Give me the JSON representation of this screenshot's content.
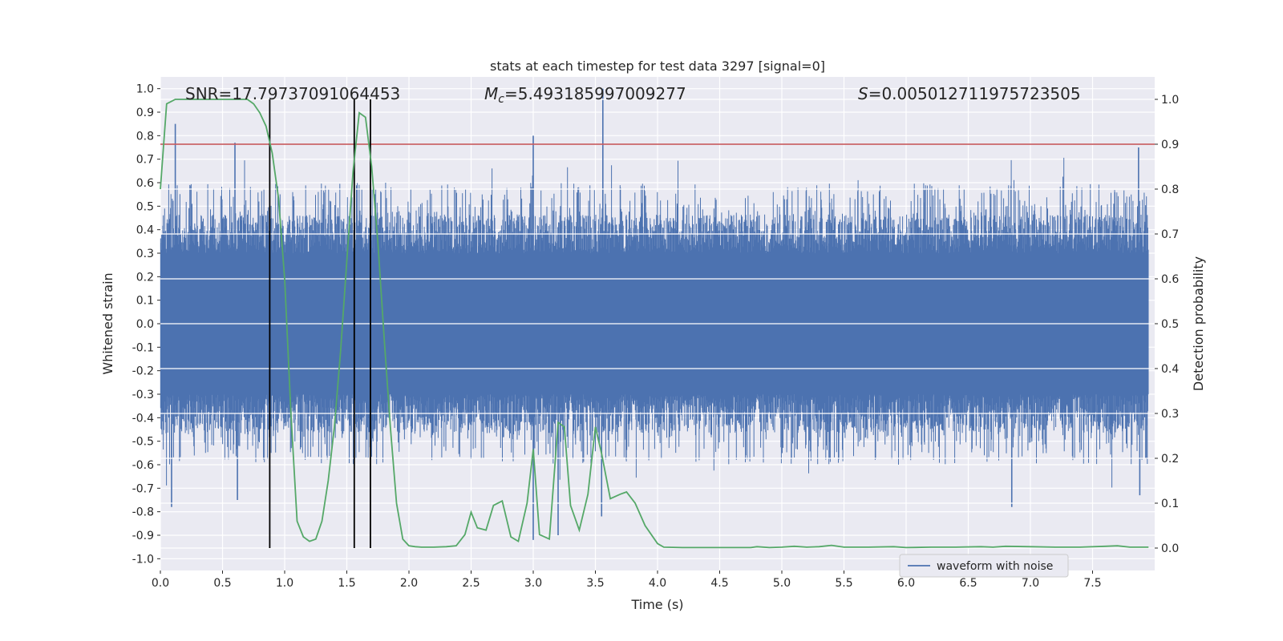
{
  "chart_data": {
    "type": "line",
    "title": "stats at each timestep for test data 3297 [signal=0]",
    "xlabel": "Time (s)",
    "ylabel_left": "Whitened strain",
    "ylabel_right": "Detection probability",
    "xlim": [
      0,
      8
    ],
    "ylim_left": [
      -1.05,
      1.05
    ],
    "ylim_right": [
      -0.05,
      1.05
    ],
    "x_ticks": [
      "0.0",
      "0.5",
      "1.0",
      "1.5",
      "2.0",
      "2.5",
      "3.0",
      "3.5",
      "4.0",
      "4.5",
      "5.0",
      "5.5",
      "6.0",
      "6.5",
      "7.0",
      "7.5"
    ],
    "y_ticks_left": [
      "-1.0",
      "-0.9",
      "-0.8",
      "-0.7",
      "-0.6",
      "-0.5",
      "-0.4",
      "-0.3",
      "-0.2",
      "-0.1",
      "0.0",
      "0.1",
      "0.2",
      "0.3",
      "0.4",
      "0.5",
      "0.6",
      "0.7",
      "0.8",
      "0.9",
      "1.0"
    ],
    "y_ticks_right": [
      "0.0",
      "0.1",
      "0.2",
      "0.3",
      "0.4",
      "0.5",
      "0.6",
      "0.7",
      "0.8",
      "0.9",
      "1.0"
    ],
    "annotations": {
      "snr": "SNR=17.79737091064453",
      "mc_symbol": "M",
      "mc_sub": "c",
      "mc_value": "=5.493185997009277",
      "s_symbol": "S",
      "s_value": "=0.005012711975723505"
    },
    "threshold_right": 0.9,
    "threshold_color": "#c44e52",
    "vertical_lines_x": [
      0.88,
      1.56,
      1.69
    ],
    "waveform": {
      "name": "waveform with noise",
      "color": "#4c72b0",
      "core_amplitude": 0.3,
      "typical_peak_range": [
        0.35,
        0.6
      ],
      "notable_peaks": [
        {
          "x": 0.12,
          "y": 0.85
        },
        {
          "x": 0.09,
          "y": -0.78
        },
        {
          "x": 0.6,
          "y": 0.77
        },
        {
          "x": 0.62,
          "y": -0.75
        },
        {
          "x": 3.0,
          "y": 0.8
        },
        {
          "x": 3.0,
          "y": -0.92
        },
        {
          "x": 3.56,
          "y": 1.0
        },
        {
          "x": 3.55,
          "y": -0.82
        },
        {
          "x": 3.2,
          "y": -0.9
        },
        {
          "x": 6.85,
          "y": -0.78
        },
        {
          "x": 7.87,
          "y": 0.75
        },
        {
          "x": 7.88,
          "y": -0.73
        }
      ]
    },
    "probability": {
      "color": "#55a868",
      "x": [
        0.0,
        0.05,
        0.12,
        0.2,
        0.3,
        0.4,
        0.5,
        0.6,
        0.7,
        0.75,
        0.8,
        0.85,
        0.9,
        0.95,
        1.0,
        1.05,
        1.1,
        1.15,
        1.2,
        1.25,
        1.3,
        1.35,
        1.4,
        1.45,
        1.5,
        1.55,
        1.6,
        1.65,
        1.7,
        1.75,
        1.8,
        1.85,
        1.9,
        1.95,
        2.0,
        2.05,
        2.1,
        2.2,
        2.3,
        2.38,
        2.45,
        2.5,
        2.55,
        2.62,
        2.68,
        2.75,
        2.82,
        2.88,
        2.95,
        3.0,
        3.05,
        3.13,
        3.2,
        3.25,
        3.3,
        3.37,
        3.44,
        3.5,
        3.55,
        3.62,
        3.7,
        3.75,
        3.82,
        3.9,
        4.0,
        4.05,
        4.2,
        4.5,
        4.75,
        4.8,
        4.9,
        5.0,
        5.1,
        5.2,
        5.3,
        5.4,
        5.5,
        5.7,
        5.9,
        6.0,
        6.2,
        6.4,
        6.6,
        6.7,
        6.8,
        7.0,
        7.2,
        7.4,
        7.6,
        7.7,
        7.8,
        7.95
      ],
      "y": [
        0.8,
        0.99,
        1.0,
        1.0,
        1.0,
        1.0,
        1.0,
        1.0,
        1.0,
        0.99,
        0.97,
        0.94,
        0.88,
        0.78,
        0.6,
        0.3,
        0.06,
        0.025,
        0.015,
        0.02,
        0.06,
        0.15,
        0.27,
        0.44,
        0.64,
        0.84,
        0.97,
        0.96,
        0.85,
        0.68,
        0.47,
        0.27,
        0.1,
        0.02,
        0.005,
        0.003,
        0.002,
        0.002,
        0.003,
        0.005,
        0.03,
        0.08,
        0.045,
        0.04,
        0.095,
        0.105,
        0.025,
        0.015,
        0.1,
        0.22,
        0.03,
        0.02,
        0.28,
        0.27,
        0.095,
        0.04,
        0.12,
        0.27,
        0.21,
        0.11,
        0.12,
        0.125,
        0.1,
        0.05,
        0.01,
        0.002,
        0.001,
        0.001,
        0.001,
        0.003,
        0.001,
        0.002,
        0.004,
        0.002,
        0.003,
        0.006,
        0.002,
        0.002,
        0.003,
        0.001,
        0.002,
        0.002,
        0.003,
        0.002,
        0.004,
        0.003,
        0.002,
        0.002,
        0.004,
        0.005,
        0.002,
        0.002
      ]
    },
    "legend": {
      "placement": "lower-right",
      "entries": [
        "waveform with noise"
      ]
    }
  }
}
